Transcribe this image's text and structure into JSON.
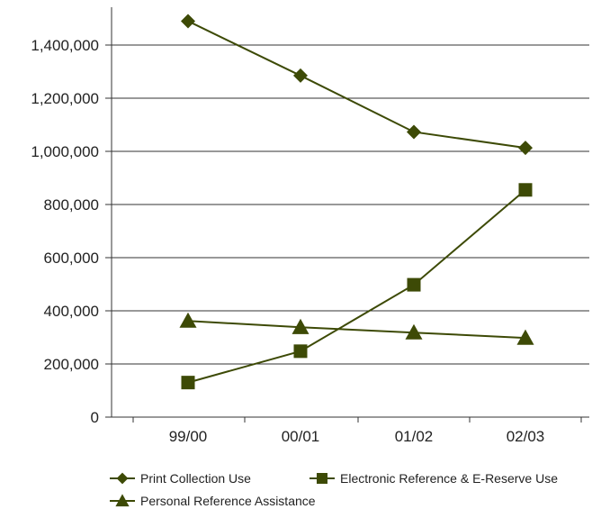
{
  "chart_data": {
    "type": "line",
    "categories": [
      "99/00",
      "00/01",
      "01/02",
      "02/03"
    ],
    "series": [
      {
        "name": "Print Collection Use",
        "marker": "diamond",
        "values": [
          1490000,
          1285000,
          1073000,
          1013000
        ]
      },
      {
        "name": "Electronic Reference & E-Reserve Use",
        "marker": "square",
        "values": [
          130000,
          248000,
          498000,
          855000
        ]
      },
      {
        "name": "Personal Reference Assistance",
        "marker": "triangle",
        "values": [
          362000,
          338000,
          318000,
          298000
        ]
      }
    ],
    "ylim": [
      0,
      1600000
    ],
    "yticks": [
      0,
      200000,
      400000,
      600000,
      800000,
      1000000,
      1200000,
      1400000
    ],
    "ytick_labels": [
      "0",
      "200,000",
      "400,000",
      "600,000",
      "800,000",
      "1,000,000",
      "1,200,000",
      "1,400,000"
    ],
    "grid": true,
    "legend_position": "bottom",
    "title": "",
    "xlabel": "",
    "ylabel": ""
  },
  "colors": {
    "series": "#3d4a06",
    "grid": "#333333",
    "text": "#222222"
  }
}
